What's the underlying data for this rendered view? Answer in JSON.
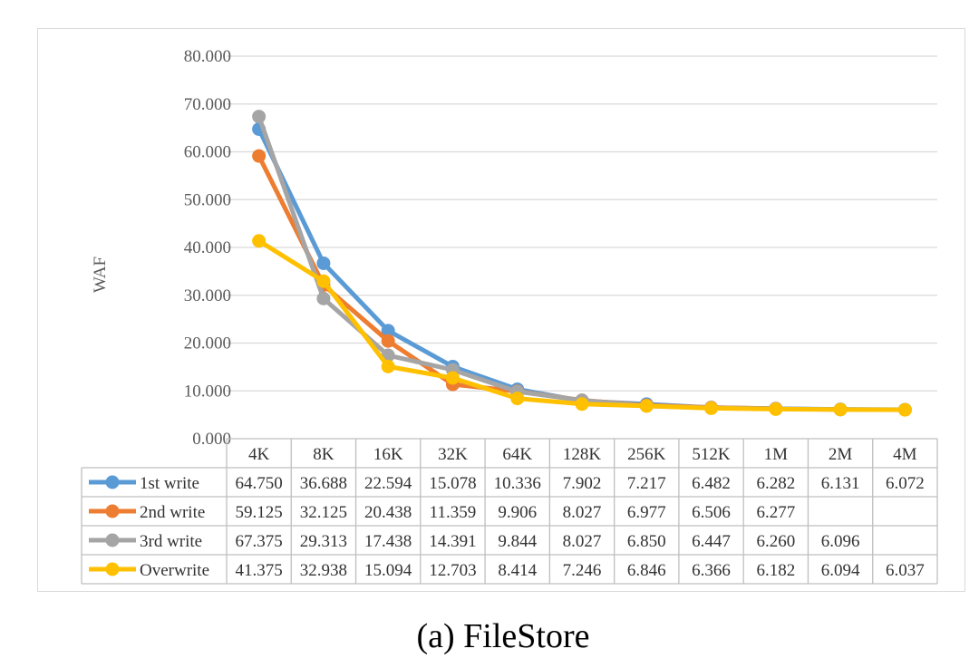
{
  "chart_data": {
    "type": "line",
    "title": "",
    "xlabel": "",
    "ylabel": "WAF",
    "ylim": [
      0,
      80
    ],
    "y_ticks": [
      "0.000",
      "10.000",
      "20.000",
      "30.000",
      "40.000",
      "50.000",
      "60.000",
      "70.000",
      "80.000"
    ],
    "grid": true,
    "legend": "data-table",
    "categories": [
      "4K",
      "8K",
      "16K",
      "32K",
      "64K",
      "128K",
      "256K",
      "512K",
      "1M",
      "2M",
      "4M"
    ],
    "series": [
      {
        "name": "1st write",
        "color": "#5b9bd5",
        "values": [
          64.75,
          36.688,
          22.594,
          15.078,
          10.336,
          7.902,
          7.217,
          6.482,
          6.282,
          6.131,
          6.072
        ],
        "labels": [
          "64.750",
          "36.688",
          "22.594",
          "15.078",
          "10.336",
          "7.902",
          "7.217",
          "6.482",
          "6.282",
          "6.131",
          "6.072"
        ]
      },
      {
        "name": "2nd write",
        "color": "#ed7d31",
        "values": [
          59.125,
          32.125,
          20.438,
          11.359,
          9.906,
          8.027,
          6.977,
          6.506,
          6.277,
          null,
          null
        ],
        "labels": [
          "59.125",
          "32.125",
          "20.438",
          "11.359",
          "9.906",
          "8.027",
          "6.977",
          "6.506",
          "6.277",
          "",
          ""
        ]
      },
      {
        "name": "3rd write",
        "color": "#a5a5a5",
        "values": [
          67.375,
          29.313,
          17.438,
          14.391,
          9.844,
          8.027,
          6.85,
          6.447,
          6.26,
          6.096,
          null
        ],
        "labels": [
          "67.375",
          "29.313",
          "17.438",
          "14.391",
          "9.844",
          "8.027",
          "6.850",
          "6.447",
          "6.260",
          "6.096",
          ""
        ]
      },
      {
        "name": "Overwrite",
        "color": "#ffc000",
        "values": [
          41.375,
          32.938,
          15.094,
          12.703,
          8.414,
          7.246,
          6.846,
          6.366,
          6.182,
          6.094,
          6.037
        ],
        "labels": [
          "41.375",
          "32.938",
          "15.094",
          "12.703",
          "8.414",
          "7.246",
          "6.846",
          "6.366",
          "6.182",
          "6.094",
          "6.037"
        ]
      }
    ]
  },
  "caption": "(a) FileStore"
}
